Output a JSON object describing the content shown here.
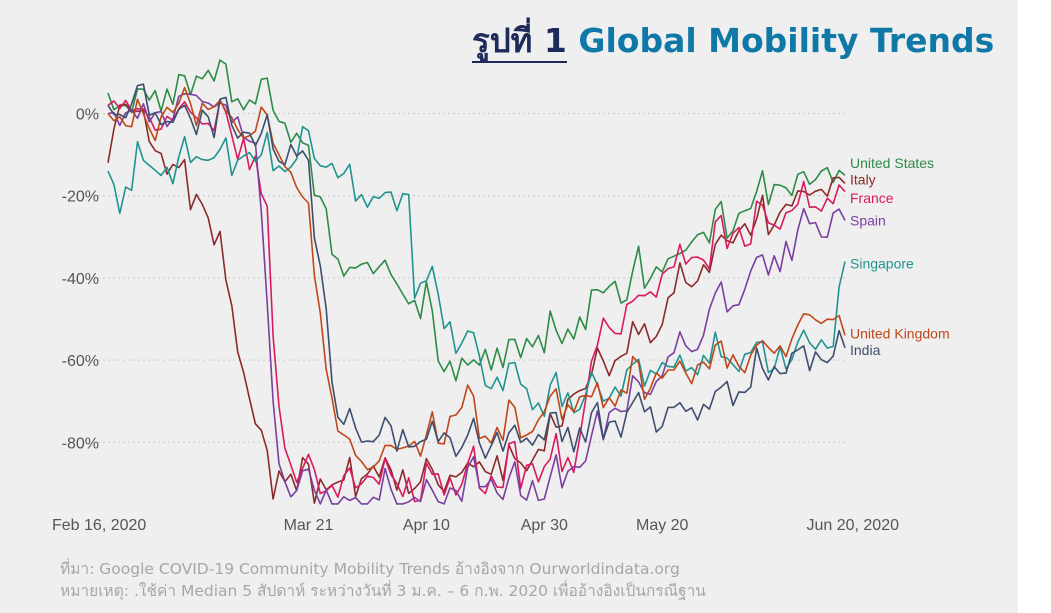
{
  "title": {
    "prefix": "รูปที่ 1",
    "main": "Global Mobility Trends"
  },
  "footnotes": {
    "source": "ที่มา: Google COVID-19 Community Mobility Trends อ้างอิงจาก Ourworldindata.org",
    "note": "หมายเหตุ: .ใช้ค่า Median 5 สัปดาห์ ระหว่างวันที่ 3 ม.ค. – 6 ก.พ. 2020  เพื่ออ้างอิงเป็นกรณีฐาน"
  },
  "chart_data": {
    "type": "line",
    "x_start": "2020-02-16",
    "x_end": "2020-06-20",
    "xticks": [
      {
        "date": "2020-02-16",
        "label": "Feb 16, 2020"
      },
      {
        "date": "2020-03-21",
        "label": "Mar 21"
      },
      {
        "date": "2020-04-10",
        "label": "Apr 10"
      },
      {
        "date": "2020-04-30",
        "label": "Apr 30"
      },
      {
        "date": "2020-05-20",
        "label": "May 20"
      },
      {
        "date": "2020-06-20",
        "label": "Jun 20, 2020"
      }
    ],
    "ylim": [
      -96,
      14
    ],
    "yticks": [
      {
        "value": 0,
        "label": "0%"
      },
      {
        "value": -20,
        "label": "-20%"
      },
      {
        "value": -40,
        "label": "-40%"
      },
      {
        "value": -60,
        "label": "-60%"
      },
      {
        "value": -80,
        "label": "-80%"
      }
    ],
    "grid": "horizontal dotted",
    "legend": "right end labels",
    "series": [
      {
        "name": "United States",
        "color": "#2e8b47",
        "legend_value": -12.0,
        "keypoints": [
          [
            "2020-02-16",
            5
          ],
          [
            "2020-02-25",
            4
          ],
          [
            "2020-03-01",
            8
          ],
          [
            "2020-03-05",
            10
          ],
          [
            "2020-03-10",
            4
          ],
          [
            "2020-03-14",
            8
          ],
          [
            "2020-03-18",
            -3
          ],
          [
            "2020-03-21",
            -12
          ],
          [
            "2020-03-24",
            -25
          ],
          [
            "2020-03-27",
            -42
          ],
          [
            "2020-04-01",
            -35
          ],
          [
            "2020-04-06",
            -45
          ],
          [
            "2020-04-10",
            -48
          ],
          [
            "2020-04-13",
            -60
          ],
          [
            "2020-04-17",
            -62
          ],
          [
            "2020-04-22",
            -58
          ],
          [
            "2020-04-30",
            -55
          ],
          [
            "2020-05-05",
            -52
          ],
          [
            "2020-05-10",
            -45
          ],
          [
            "2020-05-15",
            -40
          ],
          [
            "2020-05-20",
            -38
          ],
          [
            "2020-05-25",
            -33
          ],
          [
            "2020-05-30",
            -28
          ],
          [
            "2020-06-05",
            -22
          ],
          [
            "2020-06-10",
            -17
          ],
          [
            "2020-06-15",
            -15
          ],
          [
            "2020-06-20",
            -15
          ]
        ]
      },
      {
        "name": "Italy",
        "color": "#8c2a2a",
        "legend_value": -16.0,
        "keypoints": [
          [
            "2020-02-16",
            -12
          ],
          [
            "2020-02-19",
            6
          ],
          [
            "2020-02-22",
            -4
          ],
          [
            "2020-02-25",
            -10
          ],
          [
            "2020-02-29",
            -18
          ],
          [
            "2020-03-03",
            -22
          ],
          [
            "2020-03-06",
            -35
          ],
          [
            "2020-03-09",
            -55
          ],
          [
            "2020-03-12",
            -78
          ],
          [
            "2020-03-15",
            -90
          ],
          [
            "2020-03-18",
            -86
          ],
          [
            "2020-03-21",
            -90
          ],
          [
            "2020-03-26",
            -92
          ],
          [
            "2020-04-01",
            -88
          ],
          [
            "2020-04-10",
            -90
          ],
          [
            "2020-04-20",
            -86
          ],
          [
            "2020-04-30",
            -84
          ],
          [
            "2020-05-04",
            -70
          ],
          [
            "2020-05-10",
            -62
          ],
          [
            "2020-05-16",
            -55
          ],
          [
            "2020-05-20",
            -48
          ],
          [
            "2020-05-25",
            -40
          ],
          [
            "2020-05-30",
            -33
          ],
          [
            "2020-06-05",
            -27
          ],
          [
            "2020-06-10",
            -22
          ],
          [
            "2020-06-15",
            -18
          ],
          [
            "2020-06-20",
            -17
          ]
        ]
      },
      {
        "name": "France",
        "color": "#d81b60",
        "legend_value": -20.5,
        "keypoints": [
          [
            "2020-02-16",
            2
          ],
          [
            "2020-02-22",
            0
          ],
          [
            "2020-03-01",
            -2
          ],
          [
            "2020-03-08",
            -5
          ],
          [
            "2020-03-12",
            -12
          ],
          [
            "2020-03-14",
            -30
          ],
          [
            "2020-03-16",
            -72
          ],
          [
            "2020-03-18",
            -86
          ],
          [
            "2020-03-21",
            -88
          ],
          [
            "2020-03-26",
            -90
          ],
          [
            "2020-04-01",
            -90
          ],
          [
            "2020-04-10",
            -90
          ],
          [
            "2020-04-20",
            -88
          ],
          [
            "2020-04-30",
            -86
          ],
          [
            "2020-05-05",
            -84
          ],
          [
            "2020-05-10",
            -52
          ],
          [
            "2020-05-15",
            -48
          ],
          [
            "2020-05-20",
            -40
          ],
          [
            "2020-05-25",
            -36
          ],
          [
            "2020-05-30",
            -32
          ],
          [
            "2020-06-05",
            -28
          ],
          [
            "2020-06-10",
            -25
          ],
          [
            "2020-06-15",
            -22
          ],
          [
            "2020-06-20",
            -19
          ]
        ]
      },
      {
        "name": "Spain",
        "color": "#7b3fa0",
        "legend_value": -26.0,
        "keypoints": [
          [
            "2020-02-16",
            0
          ],
          [
            "2020-02-22",
            -2
          ],
          [
            "2020-03-01",
            3
          ],
          [
            "2020-03-08",
            0
          ],
          [
            "2020-03-12",
            -8
          ],
          [
            "2020-03-14",
            -50
          ],
          [
            "2020-03-16",
            -85
          ],
          [
            "2020-03-18",
            -89
          ],
          [
            "2020-03-21",
            -92
          ],
          [
            "2020-03-26",
            -95
          ],
          [
            "2020-04-01",
            -94
          ],
          [
            "2020-04-10",
            -93
          ],
          [
            "2020-04-20",
            -90
          ],
          [
            "2020-04-30",
            -92
          ],
          [
            "2020-05-04",
            -88
          ],
          [
            "2020-05-10",
            -75
          ],
          [
            "2020-05-15",
            -70
          ],
          [
            "2020-05-20",
            -62
          ],
          [
            "2020-05-25",
            -55
          ],
          [
            "2020-05-30",
            -45
          ],
          [
            "2020-06-05",
            -40
          ],
          [
            "2020-06-10",
            -33
          ],
          [
            "2020-06-15",
            -26
          ],
          [
            "2020-06-20",
            -26
          ]
        ]
      },
      {
        "name": "Singapore",
        "color": "#1f9491",
        "legend_value": -36.5,
        "keypoints": [
          [
            "2020-02-16",
            -14
          ],
          [
            "2020-02-18",
            -20
          ],
          [
            "2020-02-22",
            -12
          ],
          [
            "2020-03-01",
            -13
          ],
          [
            "2020-03-08",
            -11
          ],
          [
            "2020-03-15",
            -12
          ],
          [
            "2020-03-21",
            -10
          ],
          [
            "2020-03-26",
            -15
          ],
          [
            "2020-04-01",
            -20
          ],
          [
            "2020-04-05",
            -22
          ],
          [
            "2020-04-07",
            -16
          ],
          [
            "2020-04-08",
            -42
          ],
          [
            "2020-04-12",
            -45
          ],
          [
            "2020-04-16",
            -58
          ],
          [
            "2020-04-20",
            -62
          ],
          [
            "2020-04-25",
            -66
          ],
          [
            "2020-04-30",
            -70
          ],
          [
            "2020-05-05",
            -69
          ],
          [
            "2020-05-10",
            -66
          ],
          [
            "2020-05-15",
            -64
          ],
          [
            "2020-05-20",
            -63
          ],
          [
            "2020-05-25",
            -62
          ],
          [
            "2020-05-30",
            -60
          ],
          [
            "2020-06-05",
            -59
          ],
          [
            "2020-06-10",
            -58
          ],
          [
            "2020-06-15",
            -57
          ],
          [
            "2020-06-18",
            -55
          ],
          [
            "2020-06-20",
            -36
          ]
        ]
      },
      {
        "name": "United Kingdom",
        "color": "#c0471a",
        "legend_value": -53.5,
        "keypoints": [
          [
            "2020-02-16",
            0
          ],
          [
            "2020-02-22",
            -4
          ],
          [
            "2020-03-01",
            2
          ],
          [
            "2020-03-08",
            -2
          ],
          [
            "2020-03-14",
            -4
          ],
          [
            "2020-03-17",
            -10
          ],
          [
            "2020-03-21",
            -28
          ],
          [
            "2020-03-24",
            -60
          ],
          [
            "2020-03-26",
            -78
          ],
          [
            "2020-04-01",
            -85
          ],
          [
            "2020-04-10",
            -80
          ],
          [
            "2020-04-16",
            -72
          ],
          [
            "2020-04-20",
            -78
          ],
          [
            "2020-04-30",
            -74
          ],
          [
            "2020-05-05",
            -72
          ],
          [
            "2020-05-10",
            -68
          ],
          [
            "2020-05-15",
            -66
          ],
          [
            "2020-05-20",
            -64
          ],
          [
            "2020-05-25",
            -62
          ],
          [
            "2020-05-30",
            -60
          ],
          [
            "2020-06-05",
            -58
          ],
          [
            "2020-06-10",
            -56
          ],
          [
            "2020-06-15",
            -50
          ],
          [
            "2020-06-18",
            -52
          ],
          [
            "2020-06-20",
            -54
          ]
        ]
      },
      {
        "name": "India",
        "color": "#3e4e6e",
        "legend_value": -57.5,
        "keypoints": [
          [
            "2020-02-16",
            2
          ],
          [
            "2020-02-22",
            0
          ],
          [
            "2020-03-01",
            -1
          ],
          [
            "2020-03-08",
            -2
          ],
          [
            "2020-03-12",
            -6
          ],
          [
            "2020-03-18",
            -10
          ],
          [
            "2020-03-21",
            -18
          ],
          [
            "2020-03-24",
            -50
          ],
          [
            "2020-03-26",
            -76
          ],
          [
            "2020-04-01",
            -78
          ],
          [
            "2020-04-10",
            -80
          ],
          [
            "2020-04-20",
            -80
          ],
          [
            "2020-04-30",
            -79
          ],
          [
            "2020-05-05",
            -78
          ],
          [
            "2020-05-10",
            -76
          ],
          [
            "2020-05-15",
            -74
          ],
          [
            "2020-05-20",
            -73
          ],
          [
            "2020-05-25",
            -71
          ],
          [
            "2020-05-30",
            -68
          ],
          [
            "2020-06-05",
            -64
          ],
          [
            "2020-06-10",
            -61
          ],
          [
            "2020-06-15",
            -58
          ],
          [
            "2020-06-20",
            -57
          ]
        ]
      }
    ]
  }
}
